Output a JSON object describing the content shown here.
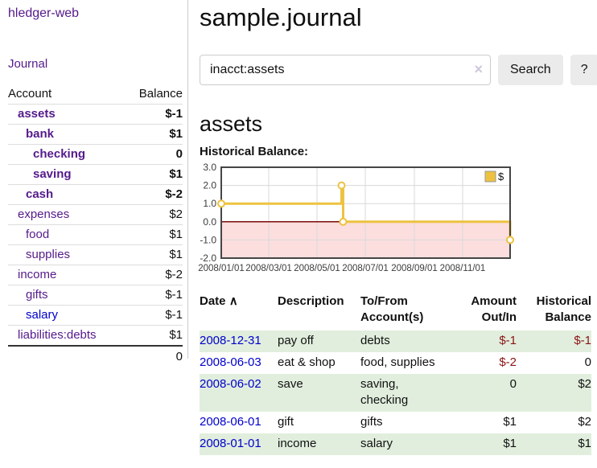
{
  "app": {
    "brand": "hledger-web",
    "nav_journal": "Journal"
  },
  "sidebar": {
    "header": {
      "account": "Account",
      "balance": "Balance"
    },
    "accounts": [
      {
        "name": "assets",
        "balance": "$-1",
        "level": 1,
        "bold": true,
        "neg": "strong"
      },
      {
        "name": "bank",
        "balance": "$1",
        "level": 2,
        "bold": true
      },
      {
        "name": "checking",
        "balance": "0",
        "level": 3,
        "bold": true
      },
      {
        "name": "saving",
        "balance": "$1",
        "level": 3,
        "bold": true
      },
      {
        "name": "cash",
        "balance": "$-2",
        "level": 2,
        "bold": true,
        "neg": "strong"
      },
      {
        "name": "expenses",
        "balance": "$2",
        "level": 1
      },
      {
        "name": "food",
        "balance": "$1",
        "level": 2
      },
      {
        "name": "supplies",
        "balance": "$1",
        "level": 2
      },
      {
        "name": "income",
        "balance": "$-2",
        "level": 1,
        "neg": "light"
      },
      {
        "name": "gifts",
        "balance": "$-1",
        "level": 2,
        "neg": "light"
      },
      {
        "name": "salary",
        "balance": "$-1",
        "level": 2,
        "neg": "light",
        "link": "blue"
      },
      {
        "name": "liabilities:debts",
        "balance": "$1",
        "level": 1
      }
    ],
    "total": "0"
  },
  "header": {
    "title": "sample.journal"
  },
  "search": {
    "value": "inacct:assets",
    "clear_icon": "×",
    "button": "Search",
    "help_button": "?"
  },
  "account_page": {
    "heading": "assets",
    "chart_label": "Historical Balance:"
  },
  "chart_data": {
    "type": "line",
    "style": "step",
    "title": "Historical Balance",
    "series": [
      {
        "name": "$",
        "points": [
          {
            "date": "2008-01-01",
            "value": 1
          },
          {
            "date": "2008-06-01",
            "value": 2
          },
          {
            "date": "2008-06-03",
            "value": 0
          },
          {
            "date": "2008-12-31",
            "value": -1
          }
        ]
      }
    ],
    "x_range": [
      "2008-01-01",
      "2008-12-31"
    ],
    "ylim": [
      -2,
      3
    ],
    "y_ticks": [
      "3.0",
      "2.0",
      "1.0",
      "0.0",
      "-1.0",
      "-2.0"
    ],
    "x_ticks": [
      "2008/01/01",
      "2008/03/01",
      "2008/05/01",
      "2008/07/01",
      "2008/09/01",
      "2008/11/01"
    ],
    "legend": "$",
    "legend_position": "top-right",
    "grid": true,
    "line_color": "#edc240",
    "negative_region_color": "#fcdede",
    "zero_line_color": "#7a0b0b"
  },
  "register": {
    "columns": [
      "Date",
      "Description",
      "To/From Account(s)",
      "Amount Out/In",
      "Historical Balance"
    ],
    "sort_icon": "∧",
    "rows": [
      {
        "date": "2008-12-31",
        "description": "pay off",
        "accounts": "debts",
        "amount": "$-1",
        "balance": "$-1",
        "amount_neg": true,
        "balance_neg": true
      },
      {
        "date": "2008-06-03",
        "description": "eat & shop",
        "accounts": "food, supplies",
        "amount": "$-2",
        "balance": "0",
        "amount_neg": true
      },
      {
        "date": "2008-06-02",
        "description": "save",
        "accounts": "saving, checking",
        "amount": "0",
        "balance": "$2"
      },
      {
        "date": "2008-06-01",
        "description": "gift",
        "accounts": "gifts",
        "amount": "$1",
        "balance": "$2"
      },
      {
        "date": "2008-01-01",
        "description": "income",
        "accounts": "salary",
        "amount": "$1",
        "balance": "$1"
      }
    ]
  }
}
